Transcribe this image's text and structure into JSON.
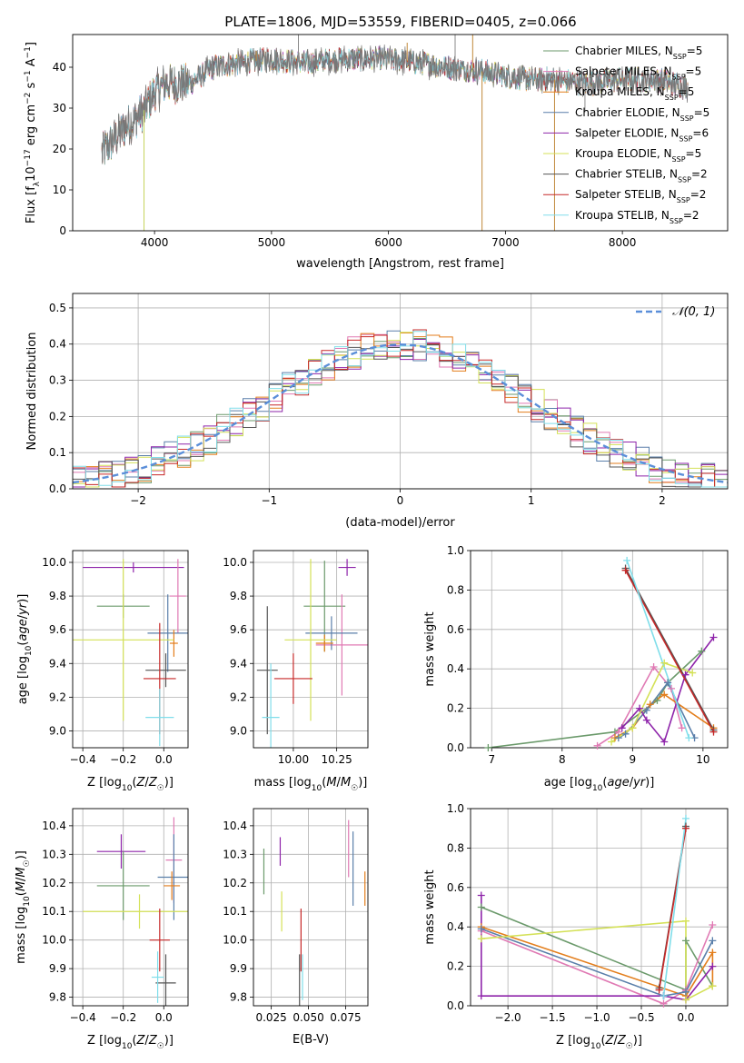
{
  "title": "PLATE=1806, MJD=53559, FIBERID=0405, z=0.066",
  "legend_entries": [
    {
      "text": "Chabrier MILES, N",
      "sub": "SSP",
      "tail": "=5",
      "color": "#6b9a6b"
    },
    {
      "text": "Salpeter MILES, N",
      "sub": "SSP",
      "tail": "=5",
      "color": "#e07ab4"
    },
    {
      "text": "Kroupa MILES, N",
      "sub": "SSP",
      "tail": "=5",
      "color": "#e37e1c"
    },
    {
      "text": "Chabrier ELODIE, N",
      "sub": "SSP",
      "tail": "=5",
      "color": "#5a7faa"
    },
    {
      "text": "Salpeter ELODIE, N",
      "sub": "SSP",
      "tail": "=6",
      "color": "#8e24aa"
    },
    {
      "text": "Kroupa ELODIE, N",
      "sub": "SSP",
      "tail": "=5",
      "color": "#d4e157"
    },
    {
      "text": "Chabrier STELIB, N",
      "sub": "SSP",
      "tail": "=2",
      "color": "#555555"
    },
    {
      "text": "Salpeter STELIB, N",
      "sub": "SSP",
      "tail": "=2",
      "color": "#c62828"
    },
    {
      "text": "Kroupa STELIB, N",
      "sub": "SSP",
      "tail": "=2",
      "color": "#80deea"
    }
  ],
  "normal_legend": "𝒩(0, 1)",
  "chart_data": [
    {
      "id": "spectrum",
      "type": "line",
      "xlabel": "wavelength [Angstrom, rest frame]",
      "ylabel": "Flux [f_λ 10^-17 erg cm^-2 s^-1 A^-1]",
      "xlim": [
        3300,
        8900
      ],
      "ylim": [
        0,
        48
      ],
      "xticks": [
        4000,
        5000,
        6000,
        7000,
        8000
      ],
      "yticks": [
        0,
        10,
        20,
        30,
        40
      ],
      "continuum_anchors": {
        "x": [
          3550,
          3700,
          3900,
          4000,
          4100,
          4300,
          4500,
          4700,
          5000,
          5300,
          5600,
          6000,
          6300,
          6500,
          6800,
          7000,
          7200,
          7400,
          7700,
          8000,
          8300,
          8560
        ],
        "y": [
          19,
          24,
          29,
          34,
          36,
          36,
          40,
          41,
          42,
          41,
          42,
          42,
          41,
          40,
          39,
          38,
          37,
          37,
          36,
          37,
          37,
          35
        ]
      },
      "spikes": [
        {
          "x": 3910,
          "y": 0
        },
        {
          "x": 4870,
          "y": 44
        },
        {
          "x": 5230,
          "y": 48
        },
        {
          "x": 6160,
          "y": 46
        },
        {
          "x": 6570,
          "y": 48
        },
        {
          "x": 6720,
          "y": 48
        },
        {
          "x": 6800,
          "y": 0
        },
        {
          "x": 7420,
          "y": 0
        },
        {
          "x": 7680,
          "y": 29
        }
      ]
    },
    {
      "id": "residuals",
      "type": "histogram",
      "xlabel": "(data-model)/error",
      "ylabel": "Normed distribution",
      "xlim": [
        -2.5,
        2.5
      ],
      "ylim": [
        0,
        0.54
      ],
      "xticks": [
        -2,
        -1,
        0,
        1,
        2
      ],
      "yticks": [
        0.0,
        0.1,
        0.2,
        0.3,
        0.4,
        0.5
      ],
      "bin_width": 0.1,
      "normal": {
        "mu": 0,
        "sigma": 1
      }
    },
    {
      "id": "age_vs_Z",
      "type": "errorbar",
      "xlabel": "Z [log10(Z/Z☉)]",
      "ylabel": "age  [log10(age/yr)]",
      "xlim": [
        -0.45,
        0.12
      ],
      "ylim": [
        8.9,
        10.07
      ],
      "xticks": [
        -0.4,
        -0.2,
        0.0
      ],
      "yticks": [
        9.0,
        9.2,
        9.4,
        9.6,
        9.8,
        10.0
      ],
      "points": [
        {
          "x": -0.15,
          "xerr": 0.25,
          "y": 9.97,
          "yerr": 0.03,
          "color": "#8e24aa"
        },
        {
          "x": -0.2,
          "xerr": 0.13,
          "y": 9.74,
          "yerr": 0.07,
          "color": "#6b9a6b"
        },
        {
          "x": 0.07,
          "xerr": 0.04,
          "y": 9.8,
          "yerr": 0.22,
          "color": "#e07ab4"
        },
        {
          "x": 0.02,
          "xerr": 0.1,
          "y": 9.58,
          "yerr": 0.23,
          "color": "#5a7faa"
        },
        {
          "x": 0.05,
          "xerr": 0.02,
          "y": 9.52,
          "yerr": 0.08,
          "color": "#e37e1c"
        },
        {
          "x": -0.2,
          "xerr": 0.25,
          "y": 9.54,
          "yerr": 0.48,
          "color": "#d4e157"
        },
        {
          "x": 0.01,
          "xerr": 0.1,
          "y": 9.36,
          "yerr": 0.1,
          "color": "#555555"
        },
        {
          "x": -0.02,
          "xerr": 0.08,
          "y": 9.31,
          "yerr": 0.33,
          "color": "#c62828"
        },
        {
          "x": -0.02,
          "xerr": 0.07,
          "y": 9.08,
          "yerr": 0.17,
          "color": "#80deea"
        }
      ]
    },
    {
      "id": "age_vs_mass",
      "type": "errorbar",
      "xlabel": "mass [log10(M/M☉)]",
      "ylabel": "",
      "xlim": [
        9.77,
        10.43
      ],
      "ylim": [
        8.9,
        10.07
      ],
      "xticks": [
        10.0,
        10.25
      ],
      "yticks": [
        9.0,
        9.2,
        9.4,
        9.6,
        9.8,
        10.0
      ],
      "points": [
        {
          "x": 10.31,
          "xerr": 0.05,
          "y": 9.97,
          "yerr": 0.05,
          "color": "#8e24aa"
        },
        {
          "x": 10.18,
          "xerr": 0.12,
          "y": 9.74,
          "yerr": 0.27,
          "color": "#6b9a6b"
        },
        {
          "x": 10.28,
          "xerr": 0.15,
          "y": 9.51,
          "yerr": 0.3,
          "color": "#e07ab4"
        },
        {
          "x": 10.22,
          "xerr": 0.15,
          "y": 9.58,
          "yerr": 0.1,
          "color": "#5a7faa"
        },
        {
          "x": 10.18,
          "xerr": 0.05,
          "y": 9.52,
          "yerr": 0.05,
          "color": "#e37e1c"
        },
        {
          "x": 10.1,
          "xerr": 0.15,
          "y": 9.54,
          "yerr": 0.48,
          "color": "#d4e157"
        },
        {
          "x": 9.85,
          "xerr": 0.06,
          "y": 9.36,
          "yerr": 0.38,
          "color": "#555555"
        },
        {
          "x": 10.0,
          "xerr": 0.11,
          "y": 9.31,
          "yerr": 0.15,
          "color": "#c62828"
        },
        {
          "x": 9.87,
          "xerr": 0.05,
          "y": 9.08,
          "yerr": 0.32,
          "color": "#80deea"
        }
      ]
    },
    {
      "id": "mass_weight_vs_age",
      "type": "line",
      "xlabel": "age  [log10(age/yr)]",
      "ylabel": "mass weight",
      "xlim": [
        6.7,
        10.35
      ],
      "ylim": [
        0,
        1.0
      ],
      "xticks": [
        7,
        8,
        9,
        10
      ],
      "yticks": [
        0.0,
        0.2,
        0.4,
        0.6,
        0.8,
        1.0
      ],
      "series": [
        {
          "color": "#6b9a6b",
          "x": [
            6.95,
            8.75,
            9.35,
            9.5,
            9.98
          ],
          "y": [
            0.0,
            0.08,
            0.24,
            0.33,
            0.49
          ]
        },
        {
          "color": "#e07ab4",
          "x": [
            8.5,
            8.8,
            9.3,
            9.55,
            9.7
          ],
          "y": [
            0.01,
            0.08,
            0.41,
            0.3,
            0.1
          ]
        },
        {
          "color": "#e37e1c",
          "x": [
            8.75,
            9.0,
            9.25,
            9.45,
            10.15
          ],
          "y": [
            0.05,
            0.1,
            0.22,
            0.27,
            0.1
          ]
        },
        {
          "color": "#5a7faa",
          "x": [
            8.8,
            8.9,
            9.2,
            9.5,
            9.88
          ],
          "y": [
            0.05,
            0.07,
            0.19,
            0.33,
            0.05
          ]
        },
        {
          "color": "#8e24aa",
          "x": [
            8.85,
            9.1,
            9.2,
            9.45,
            9.75,
            10.15
          ],
          "y": [
            0.1,
            0.2,
            0.14,
            0.03,
            0.37,
            0.56
          ]
        },
        {
          "color": "#d4e157",
          "x": [
            8.7,
            9.0,
            9.45,
            9.85
          ],
          "y": [
            0.03,
            0.1,
            0.43,
            0.38
          ]
        },
        {
          "color": "#555555",
          "x": [
            8.9,
            10.15
          ],
          "y": [
            0.91,
            0.09
          ]
        },
        {
          "color": "#c62828",
          "x": [
            8.9,
            10.15
          ],
          "y": [
            0.9,
            0.08
          ]
        },
        {
          "color": "#80deea",
          "x": [
            8.92,
            9.8
          ],
          "y": [
            0.95,
            0.05
          ]
        }
      ]
    },
    {
      "id": "mass_vs_Z",
      "type": "errorbar",
      "xlabel": "Z [log10(Z/Z☉)]",
      "ylabel": "mass [log10(M/M☉)]",
      "xlim": [
        -0.45,
        0.12
      ],
      "ylim": [
        9.77,
        10.46
      ],
      "xticks": [
        -0.4,
        -0.2,
        0.0
      ],
      "yticks": [
        9.8,
        9.9,
        10.0,
        10.1,
        10.2,
        10.3,
        10.4
      ],
      "points": [
        {
          "x": -0.21,
          "xerr": 0.12,
          "y": 10.31,
          "yerr": 0.06,
          "color": "#8e24aa"
        },
        {
          "x": -0.2,
          "xerr": 0.13,
          "y": 10.19,
          "yerr": 0.12,
          "color": "#6b9a6b"
        },
        {
          "x": 0.05,
          "xerr": 0.04,
          "y": 10.28,
          "yerr": 0.15,
          "color": "#e07ab4"
        },
        {
          "x": 0.05,
          "xerr": 0.08,
          "y": 10.22,
          "yerr": 0.15,
          "color": "#5a7faa"
        },
        {
          "x": 0.04,
          "xerr": 0.04,
          "y": 10.19,
          "yerr": 0.05,
          "color": "#e37e1c"
        },
        {
          "x": -0.12,
          "xerr": 0.28,
          "y": 10.1,
          "yerr": 0.06,
          "color": "#d4e157"
        },
        {
          "x": 0.01,
          "xerr": 0.05,
          "y": 9.85,
          "yerr": 0.1,
          "color": "#555555"
        },
        {
          "x": -0.02,
          "xerr": 0.05,
          "y": 10.0,
          "yerr": 0.11,
          "color": "#c62828"
        },
        {
          "x": -0.03,
          "xerr": 0.03,
          "y": 9.87,
          "yerr": 0.09,
          "color": "#80deea"
        }
      ]
    },
    {
      "id": "mass_vs_EBV",
      "type": "errorbar",
      "xlabel": "E(B-V)",
      "ylabel": "",
      "xlim": [
        0.013,
        0.09
      ],
      "ylim": [
        9.77,
        10.46
      ],
      "xticks": [
        0.025,
        0.05,
        0.075
      ],
      "yticks": [
        9.8,
        9.9,
        10.0,
        10.1,
        10.2,
        10.3,
        10.4
      ],
      "points": [
        {
          "x": 0.02,
          "y": 10.24,
          "yerr": 0.08,
          "color": "#6b9a6b"
        },
        {
          "x": 0.031,
          "y": 10.31,
          "yerr": 0.05,
          "color": "#8e24aa"
        },
        {
          "x": 0.032,
          "y": 10.1,
          "yerr": 0.07,
          "color": "#d4e157"
        },
        {
          "x": 0.044,
          "y": 9.85,
          "yerr": 0.1,
          "color": "#555555"
        },
        {
          "x": 0.045,
          "y": 10.0,
          "yerr": 0.11,
          "color": "#c62828"
        },
        {
          "x": 0.046,
          "y": 9.87,
          "yerr": 0.08,
          "color": "#80deea"
        },
        {
          "x": 0.077,
          "y": 10.32,
          "yerr": 0.1,
          "color": "#e07ab4"
        },
        {
          "x": 0.08,
          "y": 10.25,
          "yerr": 0.13,
          "color": "#5a7faa"
        },
        {
          "x": 0.088,
          "y": 10.18,
          "yerr": 0.06,
          "color": "#e37e1c"
        }
      ]
    },
    {
      "id": "mass_weight_vs_Z",
      "type": "line",
      "xlabel": "Z [log10(Z/Z☉)]",
      "ylabel": "mass weight",
      "xlim": [
        -2.42,
        0.47
      ],
      "ylim": [
        0,
        1.0
      ],
      "xticks": [
        -2.0,
        -1.5,
        -1.0,
        -0.5,
        0.0
      ],
      "yticks": [
        0.0,
        0.2,
        0.4,
        0.6,
        0.8,
        1.0
      ],
      "series": [
        {
          "color": "#6b9a6b",
          "x": [
            -2.3,
            0.0,
            0.0,
            0.3
          ],
          "y": [
            0.5,
            0.08,
            0.33,
            0.1
          ]
        },
        {
          "color": "#e07ab4",
          "x": [
            -2.3,
            -0.25,
            0.0,
            0.3
          ],
          "y": [
            0.38,
            0.01,
            0.08,
            0.41
          ]
        },
        {
          "color": "#e37e1c",
          "x": [
            -2.3,
            0.0,
            0.3,
            0.3
          ],
          "y": [
            0.4,
            0.05,
            0.27,
            0.1
          ]
        },
        {
          "color": "#5a7faa",
          "x": [
            -2.3,
            -0.25,
            0.0,
            0.3
          ],
          "y": [
            0.39,
            0.05,
            0.07,
            0.33
          ]
        },
        {
          "color": "#8e24aa",
          "x": [
            -2.3,
            -2.3,
            -0.25,
            0.0,
            0.3
          ],
          "y": [
            0.56,
            0.05,
            0.05,
            0.03,
            0.2
          ]
        },
        {
          "color": "#d4e157",
          "x": [
            -2.3,
            0.0,
            0.0,
            0.3
          ],
          "y": [
            0.34,
            0.43,
            0.03,
            0.1
          ]
        },
        {
          "color": "#555555",
          "x": [
            -0.3,
            0.0
          ],
          "y": [
            0.09,
            0.91
          ]
        },
        {
          "color": "#c62828",
          "x": [
            -0.3,
            0.0
          ],
          "y": [
            0.08,
            0.9
          ]
        },
        {
          "color": "#80deea",
          "x": [
            -0.25,
            0.0
          ],
          "y": [
            0.05,
            0.95
          ]
        }
      ]
    }
  ]
}
